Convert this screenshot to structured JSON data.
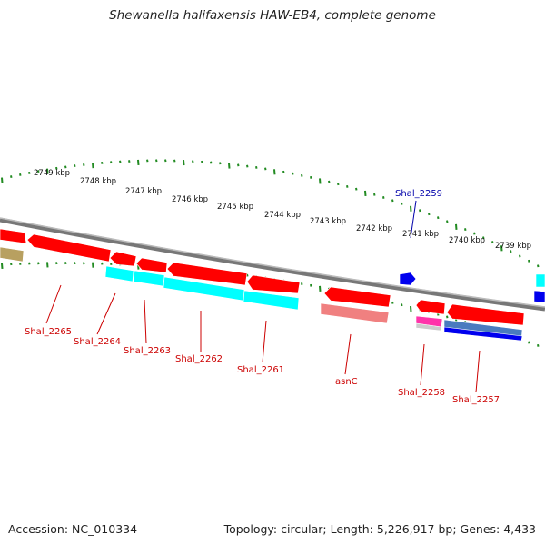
{
  "title": "Shewanella halifaxensis HAW-EB4, complete genome",
  "footer": {
    "accession": "Accession: NC_010334",
    "summary": "Topology: circular; Length: 5,226,917 bp; Genes: 4,433"
  },
  "colors": {
    "gene_red": "#ff0000",
    "gene_cyan": "#00ffff",
    "gene_blue": "#0000ee",
    "backbone": "#888888",
    "tick_green": "#228B22",
    "label_red": "#cc0000",
    "label_blue": "#0000aa"
  },
  "scale_labels": [
    "2749 kbp",
    "2748 kbp",
    "2747 kbp",
    "2746 kbp",
    "2745 kbp",
    "2744 kbp",
    "2743 kbp",
    "2742 kbp",
    "2741 kbp",
    "2740 kbp",
    "2739 kbp"
  ],
  "gene_labels": [
    {
      "text": "Shal_2265",
      "color": "red"
    },
    {
      "text": "Shal_2264",
      "color": "red"
    },
    {
      "text": "Shal_2263",
      "color": "red"
    },
    {
      "text": "Shal_2262",
      "color": "red"
    },
    {
      "text": "Shal_2261",
      "color": "red"
    },
    {
      "text": "asnC",
      "color": "red"
    },
    {
      "text": "Shal_2258",
      "color": "red"
    },
    {
      "text": "Shal_2257",
      "color": "red"
    },
    {
      "text": "Shal_2259",
      "color": "blue"
    }
  ]
}
